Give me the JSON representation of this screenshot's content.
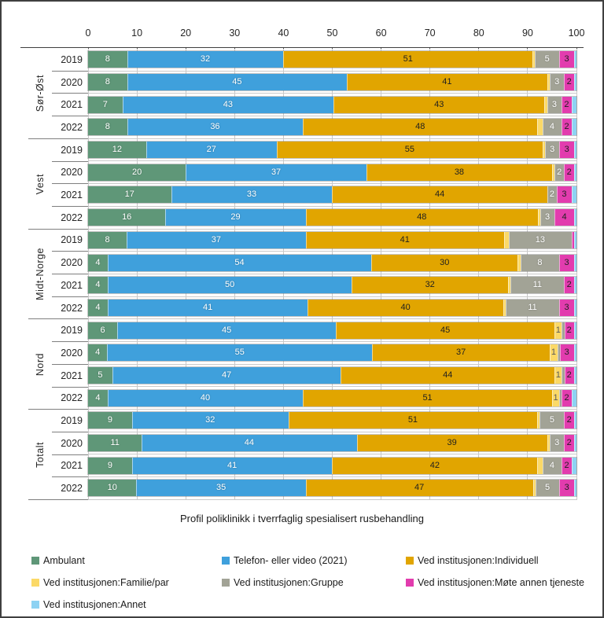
{
  "chart_data": {
    "type": "bar",
    "orientation": "horizontal",
    "stacked": true,
    "title": "Profil poliklinikk i tverrfaglig spesialisert rusbehandling",
    "axis": {
      "min": 0,
      "max": 100,
      "ticks": [
        0,
        10,
        20,
        30,
        40,
        50,
        60,
        70,
        80,
        90,
        100
      ],
      "position": "top",
      "grid": true
    },
    "legend_position": "bottom",
    "series": [
      {
        "name": "Ambulant",
        "color": "#5F9778",
        "label_color": "#ffffff"
      },
      {
        "name": "Telefon- eller video (2021)",
        "color": "#3FA0DC",
        "label_color": "#ffffff"
      },
      {
        "name": "Ved institusjonen:Individuell",
        "color": "#E1A500",
        "label_color": "#1f1f1f"
      },
      {
        "name": "Ved institusjonen:Familie/par",
        "color": "#FBD967",
        "label_color": "#595959"
      },
      {
        "name": "Ved institusjonen:Gruppe",
        "color": "#A2A396",
        "label_color": "#ffffff"
      },
      {
        "name": "Ved institusjonen:Møte annen tjeneste",
        "color": "#E23CAE",
        "label_color": "#1f1f1f"
      },
      {
        "name": "Ved institusjonen:Annet",
        "color": "#8DD2F3",
        "label_color": "#1f1f1f"
      }
    ],
    "groups": [
      {
        "region": "Sør-Øst",
        "rows": [
          {
            "year": "2019",
            "values": [
              8,
              32,
              51,
              0.5,
              5,
              3,
              0.5
            ],
            "labels": [
              "8",
              "32",
              "51",
              "",
              "5",
              "3",
              ""
            ]
          },
          {
            "year": "2020",
            "values": [
              8,
              45,
              41,
              0.5,
              3,
              2,
              0.5
            ],
            "labels": [
              "8",
              "45",
              "41",
              "",
              "3",
              "2",
              ""
            ]
          },
          {
            "year": "2021",
            "values": [
              7,
              43,
              43,
              0.5,
              3,
              2,
              1
            ],
            "labels": [
              "7",
              "43",
              "43",
              "",
              "3",
              "2",
              ""
            ]
          },
          {
            "year": "2022",
            "values": [
              8,
              36,
              48,
              1,
              4,
              2,
              1
            ],
            "labels": [
              "8",
              "36",
              "48",
              "",
              "4",
              "2",
              ""
            ]
          }
        ]
      },
      {
        "region": "Vest",
        "rows": [
          {
            "year": "2019",
            "values": [
              12,
              27,
              55,
              0.5,
              3,
              3,
              0.5
            ],
            "labels": [
              "12",
              "27",
              "55",
              "",
              "3",
              "3",
              ""
            ]
          },
          {
            "year": "2020",
            "values": [
              20,
              37,
              38,
              0.5,
              2,
              2,
              0.5
            ],
            "labels": [
              "20",
              "37",
              "38",
              "",
              "2",
              "2",
              ""
            ]
          },
          {
            "year": "2021",
            "values": [
              17,
              33,
              44,
              0,
              2,
              3,
              1
            ],
            "labels": [
              "17",
              "33",
              "44",
              "",
              "2",
              "3",
              ""
            ]
          },
          {
            "year": "2022",
            "values": [
              16,
              29,
              48,
              0.5,
              3,
              4,
              0.5
            ],
            "labels": [
              "16",
              "29",
              "48",
              "",
              "3",
              "4",
              ""
            ]
          }
        ]
      },
      {
        "region": "Midt-Norge",
        "rows": [
          {
            "year": "2019",
            "values": [
              8,
              37,
              41,
              1,
              13,
              0.5,
              0.5
            ],
            "labels": [
              "8",
              "37",
              "41",
              "",
              "13",
              "",
              ""
            ]
          },
          {
            "year": "2020",
            "values": [
              4,
              54,
              30,
              0.5,
              8,
              3,
              0.5
            ],
            "labels": [
              "4",
              "54",
              "30",
              "",
              "8",
              "3",
              ""
            ]
          },
          {
            "year": "2021",
            "values": [
              4,
              50,
              32,
              0.5,
              11,
              2,
              0.5
            ],
            "labels": [
              "4",
              "50",
              "32",
              "",
              "11",
              "2",
              ""
            ]
          },
          {
            "year": "2022",
            "values": [
              4,
              41,
              40,
              0.5,
              11,
              3,
              0.5
            ],
            "labels": [
              "4",
              "41",
              "40",
              "",
              "11",
              "3",
              ""
            ]
          }
        ]
      },
      {
        "region": "Nord",
        "rows": [
          {
            "year": "2019",
            "values": [
              6,
              45,
              45,
              1.5,
              0.5,
              2,
              0.5
            ],
            "labels": [
              "6",
              "45",
              "45",
              "1",
              "",
              "2",
              ""
            ]
          },
          {
            "year": "2020",
            "values": [
              4,
              55,
              37,
              1.5,
              0.5,
              3,
              0.5
            ],
            "labels": [
              "4",
              "55",
              "37",
              "1",
              "",
              "3",
              ""
            ]
          },
          {
            "year": "2021",
            "values": [
              5,
              47,
              44,
              1.5,
              0.5,
              2,
              0.5
            ],
            "labels": [
              "5",
              "47",
              "44",
              "1",
              "",
              "2",
              ""
            ]
          },
          {
            "year": "2022",
            "values": [
              4,
              40,
              51,
              1.5,
              0.5,
              2,
              1
            ],
            "labels": [
              "4",
              "40",
              "51",
              "1",
              "",
              "2",
              ""
            ]
          }
        ]
      },
      {
        "region": "Totalt",
        "rows": [
          {
            "year": "2019",
            "values": [
              9,
              32,
              51,
              0.5,
              5,
              2,
              0.5
            ],
            "labels": [
              "9",
              "32",
              "51",
              "",
              "5",
              "2",
              ""
            ]
          },
          {
            "year": "2020",
            "values": [
              11,
              44,
              39,
              0.5,
              3,
              2,
              0.5
            ],
            "labels": [
              "11",
              "44",
              "39",
              "",
              "3",
              "2",
              ""
            ]
          },
          {
            "year": "2021",
            "values": [
              9,
              41,
              42,
              1,
              4,
              2,
              1
            ],
            "labels": [
              "9",
              "41",
              "42",
              "",
              "4",
              "2",
              ""
            ]
          },
          {
            "year": "2022",
            "values": [
              10,
              35,
              47,
              0.5,
              5,
              3,
              0.5
            ],
            "labels": [
              "10",
              "35",
              "47",
              "",
              "5",
              "3",
              ""
            ]
          }
        ]
      }
    ]
  }
}
